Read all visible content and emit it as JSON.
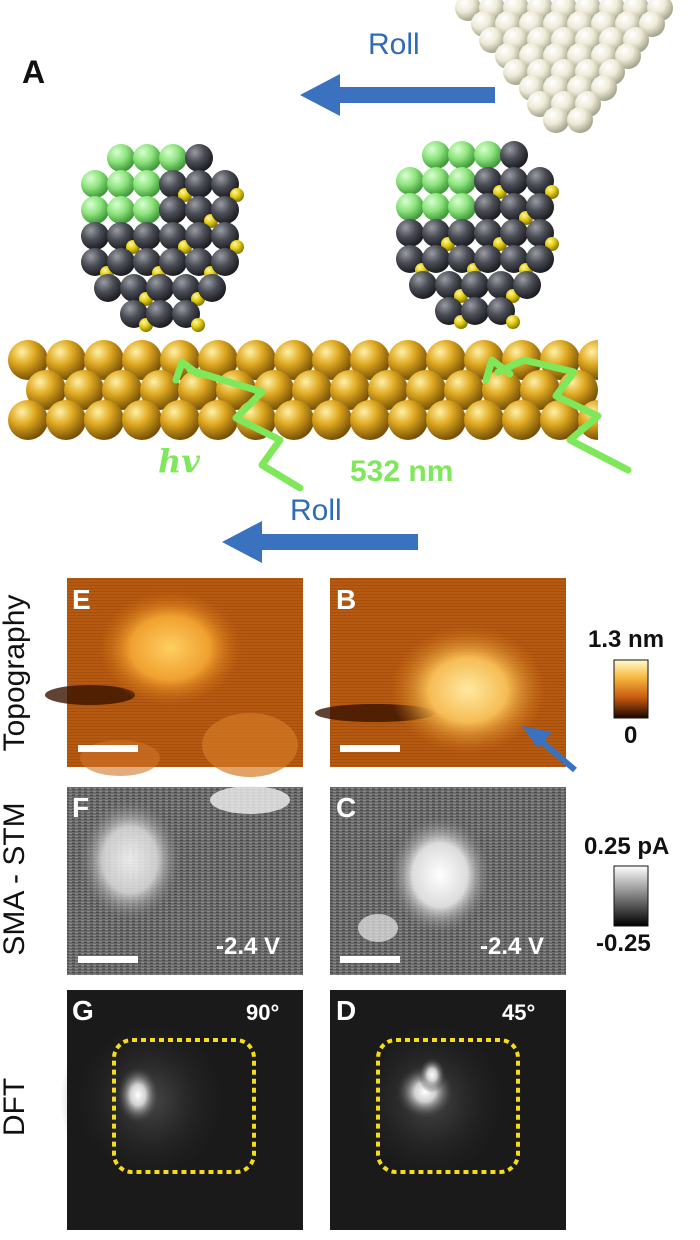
{
  "colors": {
    "arrow": "#3a72c0",
    "light": "#7ee85a",
    "gold": "#d4a017",
    "dark_atom": "#4a4d55",
    "yellow_atom": "#e8d21a",
    "green_atom": "#8be27a",
    "outline": "#f5dd1e"
  },
  "panel_A": {
    "letter": "A",
    "roll_top": "Roll",
    "roll_bottom": "Roll",
    "hv": "hv",
    "wavelength": "532 nm"
  },
  "row_labels": {
    "topography": "Topography",
    "sma_stm": "SMA - STM",
    "dft": "DFT"
  },
  "images": {
    "E": "E",
    "B": "B",
    "F": "F",
    "C": "C",
    "G": "G",
    "D": "D",
    "voltage_F": "-2.4 V",
    "voltage_C": "-2.4 V",
    "angle_G": "90°",
    "angle_D": "45°"
  },
  "colorbars": {
    "topo_max": "1.3 nm",
    "topo_min": "0",
    "sma_max": "0.25 pA",
    "sma_min": "-0.25"
  }
}
